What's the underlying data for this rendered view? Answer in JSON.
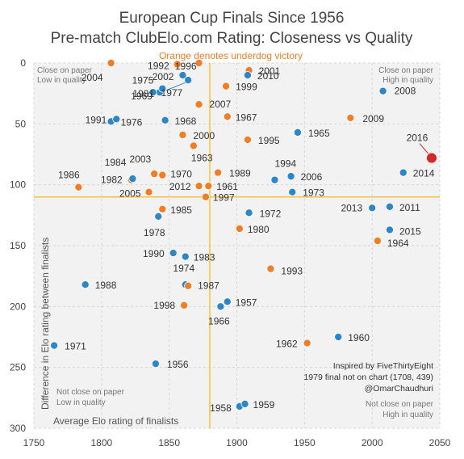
{
  "chart_data": {
    "type": "scatter",
    "title": "European Cup Finals Since 1956",
    "subtitle": "Pre-match ClubElo.com Rating: Closeness vs Quality",
    "note": "Orange denotes underdog victory",
    "xlabel": "Average Elo rating of finalists",
    "ylabel": "Difference in Elo rating between finalists",
    "xlim": [
      1750,
      2050
    ],
    "ylim": [
      300,
      0
    ],
    "y_reversed": true,
    "xticks": [
      "1750",
      "1800",
      "1850",
      "1900",
      "1950",
      "2000",
      "2050"
    ],
    "yticks": [
      "0",
      "50",
      "100",
      "150",
      "200",
      "250",
      "300"
    ],
    "grid": true,
    "reference_lines": {
      "x": 1880,
      "y": 110
    },
    "colors": {
      "favourite": "#2e86c9",
      "underdog": "#f07e26",
      "highlight": "#d62728",
      "reference": "#f5c242",
      "plot_bg": "#f2f2f2"
    },
    "corner_labels": [
      "Close on paper",
      "Low in quality",
      "Close on paper",
      "High in quality",
      "Not close on paper",
      "Low in quality",
      "Not close on paper",
      "High in quality"
    ],
    "credits": [
      "Inspired by FiveThirtyEight",
      "1979 final not on chart (1708, 439)",
      "@OmarChaudhuri"
    ],
    "points": [
      {
        "year": "1956",
        "x": 1840,
        "y": 247,
        "underdog": false
      },
      {
        "year": "1957",
        "x": 1893,
        "y": 196,
        "underdog": false
      },
      {
        "year": "1958",
        "x": 1902,
        "y": 282,
        "underdog": false
      },
      {
        "year": "1959",
        "x": 1906,
        "y": 280,
        "underdog": false
      },
      {
        "year": "1960",
        "x": 1975,
        "y": 225,
        "underdog": false
      },
      {
        "year": "1961",
        "x": 1879,
        "y": 101,
        "underdog": true
      },
      {
        "year": "1962",
        "x": 1952,
        "y": 230,
        "underdog": true
      },
      {
        "year": "1963",
        "x": 1868,
        "y": 68,
        "underdog": true
      },
      {
        "year": "1964",
        "x": 2004,
        "y": 146,
        "underdog": true
      },
      {
        "year": "1965",
        "x": 1945,
        "y": 57,
        "underdog": false
      },
      {
        "year": "1966",
        "x": 1888,
        "y": 200,
        "underdog": false
      },
      {
        "year": "1967",
        "x": 1893,
        "y": 44,
        "underdog": true
      },
      {
        "year": "1968",
        "x": 1847,
        "y": 47,
        "underdog": false
      },
      {
        "year": "1969",
        "x": 1843,
        "y": 24,
        "underdog": false
      },
      {
        "year": "1970",
        "x": 1845,
        "y": 92,
        "underdog": true
      },
      {
        "year": "1971",
        "x": 1765,
        "y": 232,
        "underdog": false
      },
      {
        "year": "1972",
        "x": 1909,
        "y": 123,
        "underdog": false
      },
      {
        "year": "1973",
        "x": 1941,
        "y": 106,
        "underdog": false
      },
      {
        "year": "1974",
        "x": 1862,
        "y": 182,
        "underdog": false
      },
      {
        "year": "1975",
        "x": 1845,
        "y": 21,
        "underdog": false
      },
      {
        "year": "1976",
        "x": 1807,
        "y": 48,
        "underdog": false
      },
      {
        "year": "1977",
        "x": 1838,
        "y": 24,
        "underdog": false
      },
      {
        "year": "1978",
        "x": 1842,
        "y": 126,
        "underdog": false
      },
      {
        "year": "1980",
        "x": 1902,
        "y": 136,
        "underdog": true
      },
      {
        "year": "1981",
        "x": 1864,
        "y": 14,
        "underdog": false
      },
      {
        "year": "1982",
        "x": 1822,
        "y": 96,
        "underdog": true
      },
      {
        "year": "1983",
        "x": 1862,
        "y": 159,
        "underdog": false
      },
      {
        "year": "1984",
        "x": 1823,
        "y": 95,
        "underdog": false
      },
      {
        "year": "1985",
        "x": 1845,
        "y": 120,
        "underdog": true
      },
      {
        "year": "1986",
        "x": 1783,
        "y": 102,
        "underdog": true
      },
      {
        "year": "1987",
        "x": 1864,
        "y": 183,
        "underdog": true
      },
      {
        "year": "1988",
        "x": 1788,
        "y": 182,
        "underdog": false
      },
      {
        "year": "1989",
        "x": 1886,
        "y": 90,
        "underdog": true
      },
      {
        "year": "1990",
        "x": 1853,
        "y": 156,
        "underdog": false
      },
      {
        "year": "1991",
        "x": 1811,
        "y": 46,
        "underdog": false
      },
      {
        "year": "1992",
        "x": 1856,
        "y": 1,
        "underdog": true
      },
      {
        "year": "1993",
        "x": 1925,
        "y": 169,
        "underdog": true
      },
      {
        "year": "1994",
        "x": 1928,
        "y": 96,
        "underdog": false
      },
      {
        "year": "1995",
        "x": 1908,
        "y": 63,
        "underdog": true
      },
      {
        "year": "1996",
        "x": 1872,
        "y": 0,
        "underdog": true
      },
      {
        "year": "1997",
        "x": 1877,
        "y": 110,
        "underdog": true
      },
      {
        "year": "1998",
        "x": 1861,
        "y": 199,
        "underdog": true
      },
      {
        "year": "1999",
        "x": 1892,
        "y": 19,
        "underdog": true
      },
      {
        "year": "2000",
        "x": 1860,
        "y": 59,
        "underdog": true
      },
      {
        "year": "2001",
        "x": 1909,
        "y": 6,
        "underdog": true
      },
      {
        "year": "2002",
        "x": 1860,
        "y": 10,
        "underdog": false
      },
      {
        "year": "2003",
        "x": 1839,
        "y": 91,
        "underdog": true
      },
      {
        "year": "2004",
        "x": 1807,
        "y": 0,
        "underdog": true
      },
      {
        "year": "2005",
        "x": 1835,
        "y": 106,
        "underdog": true
      },
      {
        "year": "2006",
        "x": 1940,
        "y": 93,
        "underdog": false
      },
      {
        "year": "2007",
        "x": 1872,
        "y": 34,
        "underdog": true
      },
      {
        "year": "2008",
        "x": 2008,
        "y": 23,
        "underdog": false
      },
      {
        "year": "2009",
        "x": 1984,
        "y": 45,
        "underdog": true
      },
      {
        "year": "2010",
        "x": 1908,
        "y": 10,
        "underdog": false
      },
      {
        "year": "2011",
        "x": 2013,
        "y": 118,
        "underdog": false
      },
      {
        "year": "2012",
        "x": 1872,
        "y": 101,
        "underdog": true
      },
      {
        "year": "2013",
        "x": 2000,
        "y": 119,
        "underdog": false
      },
      {
        "year": "2014",
        "x": 2023,
        "y": 90,
        "underdog": false
      },
      {
        "year": "2015",
        "x": 2013,
        "y": 137,
        "underdog": false
      },
      {
        "year": "2016",
        "x": 2044,
        "y": 78,
        "underdog": false,
        "highlight": true
      }
    ]
  }
}
